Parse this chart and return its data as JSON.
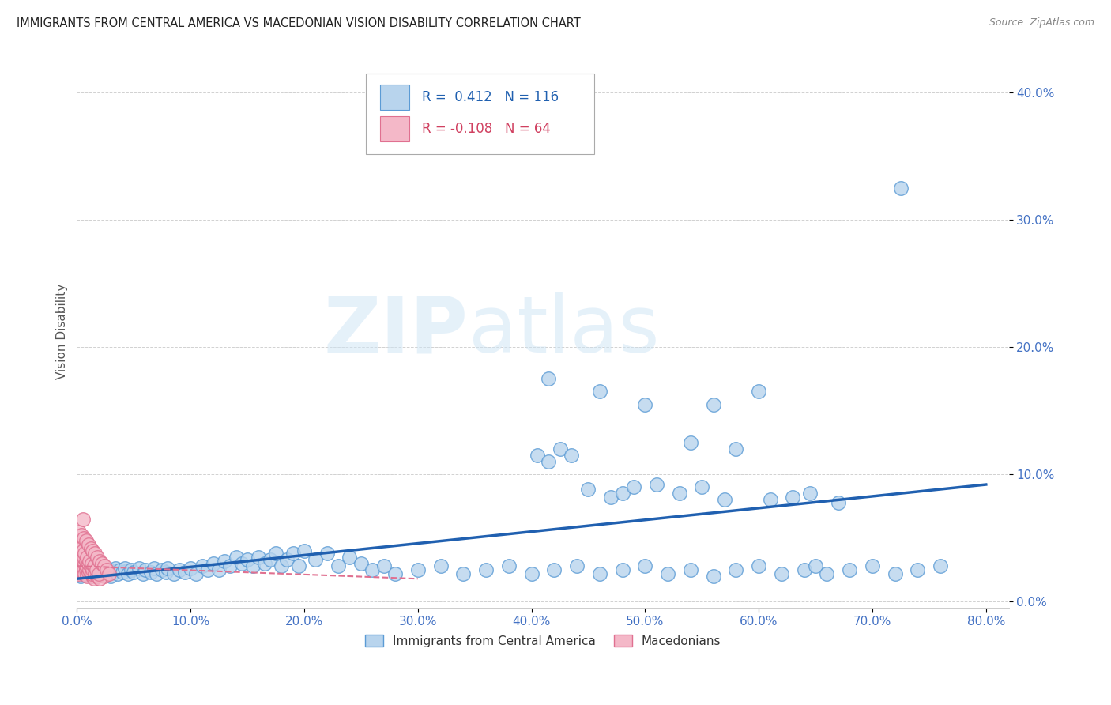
{
  "title": "IMMIGRANTS FROM CENTRAL AMERICA VS MACEDONIAN VISION DISABILITY CORRELATION CHART",
  "source": "Source: ZipAtlas.com",
  "ylabel_label": "Vision Disability",
  "xlim": [
    0.0,
    0.82
  ],
  "ylim": [
    -0.005,
    0.43
  ],
  "xticks": [
    0.0,
    0.1,
    0.2,
    0.3,
    0.4,
    0.5,
    0.6,
    0.7,
    0.8
  ],
  "yticks": [
    0.0,
    0.1,
    0.2,
    0.3,
    0.4
  ],
  "xtick_labels": [
    "0.0%",
    "10.0%",
    "20.0%",
    "30.0%",
    "40.0%",
    "50.0%",
    "60.0%",
    "70.0%",
    "80.0%"
  ],
  "ytick_labels": [
    "0.0%",
    "10.0%",
    "20.0%",
    "30.0%",
    "40.0%"
  ],
  "blue_R": 0.412,
  "blue_N": 116,
  "pink_R": -0.108,
  "pink_N": 64,
  "legend_label_blue": "Immigrants from Central America",
  "legend_label_pink": "Macedonians",
  "blue_color": "#b8d4ed",
  "blue_edge_color": "#5b9bd5",
  "pink_color": "#f4b8c8",
  "pink_edge_color": "#e07090",
  "blue_line_color": "#2060b0",
  "pink_line_color": "#e07090",
  "watermark_zip": "ZIP",
  "watermark_atlas": "atlas",
  "background_color": "#ffffff",
  "blue_scatter_x": [
    0.001,
    0.002,
    0.003,
    0.004,
    0.005,
    0.006,
    0.007,
    0.008,
    0.009,
    0.01,
    0.011,
    0.012,
    0.013,
    0.014,
    0.015,
    0.016,
    0.017,
    0.018,
    0.019,
    0.02,
    0.022,
    0.024,
    0.026,
    0.028,
    0.03,
    0.032,
    0.034,
    0.036,
    0.038,
    0.04,
    0.042,
    0.045,
    0.048,
    0.05,
    0.055,
    0.058,
    0.06,
    0.065,
    0.068,
    0.07,
    0.075,
    0.078,
    0.08,
    0.085,
    0.09,
    0.095,
    0.1,
    0.105,
    0.11,
    0.115,
    0.12,
    0.125,
    0.13,
    0.135,
    0.14,
    0.145,
    0.15,
    0.155,
    0.16,
    0.165,
    0.17,
    0.175,
    0.18,
    0.185,
    0.19,
    0.195,
    0.2,
    0.21,
    0.22,
    0.23,
    0.24,
    0.25,
    0.26,
    0.27,
    0.28,
    0.3,
    0.32,
    0.34,
    0.36,
    0.38,
    0.4,
    0.42,
    0.44,
    0.46,
    0.48,
    0.5,
    0.52,
    0.54,
    0.56,
    0.58,
    0.6,
    0.62,
    0.64,
    0.65,
    0.66,
    0.68,
    0.7,
    0.72,
    0.74,
    0.76,
    0.45,
    0.47,
    0.51,
    0.53,
    0.55,
    0.57,
    0.405,
    0.415,
    0.425,
    0.435,
    0.48,
    0.49,
    0.61,
    0.63,
    0.645,
    0.67
  ],
  "blue_scatter_y": [
    0.022,
    0.025,
    0.02,
    0.028,
    0.023,
    0.026,
    0.021,
    0.024,
    0.027,
    0.022,
    0.025,
    0.02,
    0.023,
    0.026,
    0.022,
    0.025,
    0.02,
    0.024,
    0.022,
    0.025,
    0.023,
    0.026,
    0.022,
    0.025,
    0.02,
    0.023,
    0.026,
    0.022,
    0.025,
    0.023,
    0.026,
    0.022,
    0.025,
    0.023,
    0.026,
    0.022,
    0.025,
    0.023,
    0.026,
    0.022,
    0.025,
    0.023,
    0.026,
    0.022,
    0.025,
    0.023,
    0.026,
    0.022,
    0.028,
    0.025,
    0.03,
    0.025,
    0.032,
    0.028,
    0.035,
    0.03,
    0.033,
    0.028,
    0.035,
    0.03,
    0.033,
    0.038,
    0.028,
    0.033,
    0.038,
    0.028,
    0.04,
    0.033,
    0.038,
    0.028,
    0.035,
    0.03,
    0.025,
    0.028,
    0.022,
    0.025,
    0.028,
    0.022,
    0.025,
    0.028,
    0.022,
    0.025,
    0.028,
    0.022,
    0.025,
    0.028,
    0.022,
    0.025,
    0.02,
    0.025,
    0.028,
    0.022,
    0.025,
    0.028,
    0.022,
    0.025,
    0.028,
    0.022,
    0.025,
    0.028,
    0.088,
    0.082,
    0.092,
    0.085,
    0.09,
    0.08,
    0.115,
    0.11,
    0.12,
    0.115,
    0.085,
    0.09,
    0.08,
    0.082,
    0.085,
    0.078
  ],
  "blue_outlier_x": [
    0.725
  ],
  "blue_outlier_y": [
    0.325
  ],
  "blue_mid_high_x": [
    0.415,
    0.46,
    0.5,
    0.54,
    0.56,
    0.58,
    0.6
  ],
  "blue_mid_high_y": [
    0.175,
    0.165,
    0.155,
    0.125,
    0.155,
    0.12,
    0.165
  ],
  "pink_scatter_x": [
    0.001,
    0.002,
    0.003,
    0.004,
    0.005,
    0.006,
    0.007,
    0.008,
    0.009,
    0.01,
    0.011,
    0.012,
    0.013,
    0.014,
    0.015,
    0.016,
    0.017,
    0.018,
    0.019,
    0.02,
    0.022,
    0.024,
    0.003,
    0.005,
    0.007,
    0.009,
    0.011,
    0.013,
    0.015,
    0.017,
    0.002,
    0.004,
    0.006,
    0.008,
    0.01,
    0.012,
    0.014,
    0.016,
    0.018,
    0.02,
    0.001,
    0.003,
    0.005,
    0.007,
    0.009,
    0.011,
    0.013,
    0.015,
    0.017,
    0.019,
    0.002,
    0.004,
    0.006,
    0.008,
    0.01,
    0.012,
    0.014,
    0.016,
    0.018,
    0.02,
    0.022,
    0.024,
    0.026,
    0.028
  ],
  "pink_scatter_y": [
    0.022,
    0.028,
    0.025,
    0.03,
    0.023,
    0.026,
    0.022,
    0.025,
    0.02,
    0.023,
    0.026,
    0.022,
    0.025,
    0.02,
    0.018,
    0.022,
    0.025,
    0.02,
    0.023,
    0.022,
    0.025,
    0.02,
    0.035,
    0.032,
    0.03,
    0.028,
    0.025,
    0.022,
    0.025,
    0.028,
    0.04,
    0.038,
    0.035,
    0.032,
    0.03,
    0.028,
    0.025,
    0.022,
    0.02,
    0.018,
    0.045,
    0.042,
    0.04,
    0.038,
    0.035,
    0.032,
    0.03,
    0.028,
    0.025,
    0.022,
    0.055,
    0.052,
    0.05,
    0.048,
    0.045,
    0.042,
    0.04,
    0.038,
    0.035,
    0.032,
    0.03,
    0.028,
    0.025,
    0.022
  ],
  "pink_outlier_x": [
    0.005
  ],
  "pink_outlier_y": [
    0.065
  ],
  "blue_line_x0": 0.0,
  "blue_line_y0": 0.018,
  "blue_line_x1": 0.8,
  "blue_line_y1": 0.092,
  "pink_line_x0": 0.0,
  "pink_line_y0": 0.028,
  "pink_line_x1": 0.3,
  "pink_line_y1": 0.018
}
